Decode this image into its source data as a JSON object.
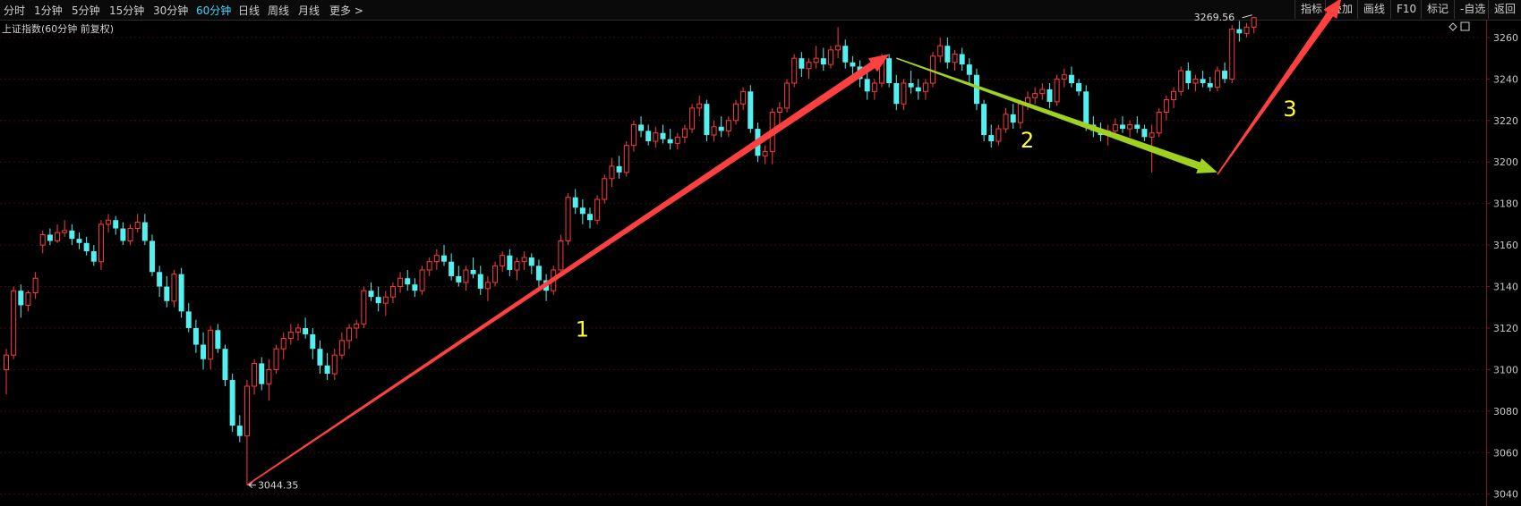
{
  "toolbar": {
    "periods": [
      "分时",
      "1分钟",
      "5分钟",
      "15分钟",
      "30分钟",
      "60分钟",
      "日线",
      "周线",
      "月线",
      "更多 >"
    ],
    "active_period": "60分钟",
    "right_buttons": [
      "指标",
      "叠加",
      "画线",
      "F10",
      "标记",
      "-自选",
      "返回"
    ],
    "right_icons": [
      "diamond-icon",
      "square-icon"
    ]
  },
  "chart_title": "上证指数(60分钟 前复权)",
  "colors": {
    "up": "#ff3a3a",
    "down": "#54f0f0",
    "grid": "#3a0e0e",
    "arrow_red": "#ff4040",
    "arrow_green": "#a0d020",
    "annotation": "#ffff33"
  },
  "chart_data": {
    "type": "candlestick",
    "y_ticks": [
      3040,
      3060,
      3080,
      3100,
      3120,
      3140,
      3160,
      3180,
      3200,
      3220,
      3240,
      3260
    ],
    "ylim": [
      3036,
      3266
    ],
    "grid": "horizontal dotted",
    "candles": [
      [
        3100,
        3110,
        3088,
        3107
      ],
      [
        3107,
        3140,
        3105,
        3138
      ],
      [
        3138,
        3141,
        3125,
        3131
      ],
      [
        3131,
        3138,
        3128,
        3137
      ],
      [
        3137,
        3147,
        3134,
        3144
      ],
      [
        3160,
        3167,
        3156,
        3165
      ],
      [
        3165,
        3168,
        3160,
        3162
      ],
      [
        3162,
        3170,
        3161,
        3166
      ],
      [
        3166,
        3172,
        3164,
        3167
      ],
      [
        3167,
        3170,
        3160,
        3163
      ],
      [
        3163,
        3166,
        3158,
        3161
      ],
      [
        3161,
        3164,
        3155,
        3157
      ],
      [
        3157,
        3160,
        3150,
        3152
      ],
      [
        3152,
        3172,
        3148,
        3170
      ],
      [
        3170,
        3175,
        3166,
        3172
      ],
      [
        3172,
        3174,
        3165,
        3168
      ],
      [
        3168,
        3171,
        3160,
        3162
      ],
      [
        3162,
        3170,
        3160,
        3168
      ],
      [
        3168,
        3175,
        3166,
        3171
      ],
      [
        3171,
        3175,
        3160,
        3162
      ],
      [
        3162,
        3165,
        3145,
        3147
      ],
      [
        3147,
        3150,
        3135,
        3140
      ],
      [
        3140,
        3145,
        3130,
        3133
      ],
      [
        3133,
        3148,
        3130,
        3146
      ],
      [
        3146,
        3149,
        3125,
        3128
      ],
      [
        3128,
        3132,
        3118,
        3120
      ],
      [
        3120,
        3124,
        3108,
        3112
      ],
      [
        3112,
        3118,
        3100,
        3105
      ],
      [
        3105,
        3121,
        3100,
        3119
      ],
      [
        3119,
        3122,
        3108,
        3110
      ],
      [
        3110,
        3112,
        3092,
        3095
      ],
      [
        3095,
        3098,
        3070,
        3073
      ],
      [
        3073,
        3078,
        3065,
        3068
      ],
      [
        3068,
        3095,
        3044.35,
        3092
      ],
      [
        3092,
        3105,
        3088,
        3103
      ],
      [
        3103,
        3106,
        3090,
        3093
      ],
      [
        3093,
        3105,
        3085,
        3100
      ],
      [
        3100,
        3112,
        3098,
        3110
      ],
      [
        3110,
        3118,
        3105,
        3115
      ],
      [
        3115,
        3122,
        3112,
        3118
      ],
      [
        3118,
        3122,
        3114,
        3120
      ],
      [
        3120,
        3125,
        3115,
        3117
      ],
      [
        3117,
        3120,
        3105,
        3110
      ],
      [
        3110,
        3114,
        3098,
        3102
      ],
      [
        3102,
        3108,
        3095,
        3098
      ],
      [
        3098,
        3110,
        3095,
        3107
      ],
      [
        3107,
        3118,
        3105,
        3114
      ],
      [
        3114,
        3122,
        3110,
        3120
      ],
      [
        3120,
        3124,
        3115,
        3122
      ],
      [
        3122,
        3140,
        3120,
        3138
      ],
      [
        3138,
        3142,
        3133,
        3135
      ],
      [
        3135,
        3140,
        3128,
        3132
      ],
      [
        3132,
        3138,
        3126,
        3135
      ],
      [
        3135,
        3142,
        3132,
        3140
      ],
      [
        3140,
        3147,
        3137,
        3144
      ],
      [
        3144,
        3148,
        3138,
        3141
      ],
      [
        3141,
        3144,
        3135,
        3138
      ],
      [
        3138,
        3150,
        3136,
        3148
      ],
      [
        3148,
        3154,
        3145,
        3152
      ],
      [
        3152,
        3158,
        3148,
        3155
      ],
      [
        3155,
        3160,
        3150,
        3152
      ],
      [
        3152,
        3156,
        3143,
        3145
      ],
      [
        3145,
        3150,
        3140,
        3142
      ],
      [
        3142,
        3150,
        3138,
        3148
      ],
      [
        3148,
        3154,
        3144,
        3146
      ],
      [
        3146,
        3150,
        3136,
        3139
      ],
      [
        3139,
        3145,
        3133,
        3142
      ],
      [
        3142,
        3152,
        3140,
        3150
      ],
      [
        3150,
        3157,
        3147,
        3155
      ],
      [
        3155,
        3158,
        3145,
        3148
      ],
      [
        3148,
        3154,
        3143,
        3152
      ],
      [
        3152,
        3157,
        3148,
        3154
      ],
      [
        3154,
        3156,
        3146,
        3150
      ],
      [
        3150,
        3153,
        3140,
        3143
      ],
      [
        3143,
        3146,
        3133,
        3138
      ],
      [
        3138,
        3150,
        3136,
        3148
      ],
      [
        3148,
        3165,
        3146,
        3162
      ],
      [
        3162,
        3185,
        3160,
        3183
      ],
      [
        3183,
        3187,
        3175,
        3178
      ],
      [
        3178,
        3182,
        3170,
        3175
      ],
      [
        3175,
        3178,
        3168,
        3172
      ],
      [
        3172,
        3184,
        3170,
        3182
      ],
      [
        3182,
        3194,
        3180,
        3192
      ],
      [
        3192,
        3202,
        3188,
        3198
      ],
      [
        3198,
        3203,
        3192,
        3195
      ],
      [
        3195,
        3210,
        3193,
        3208
      ],
      [
        3208,
        3220,
        3205,
        3218
      ],
      [
        3218,
        3222,
        3212,
        3215
      ],
      [
        3215,
        3218,
        3208,
        3210
      ],
      [
        3210,
        3217,
        3207,
        3214
      ],
      [
        3214,
        3218,
        3209,
        3211
      ],
      [
        3211,
        3216,
        3206,
        3209
      ],
      [
        3209,
        3214,
        3206,
        3212
      ],
      [
        3212,
        3218,
        3209,
        3216
      ],
      [
        3216,
        3228,
        3214,
        3226
      ],
      [
        3226,
        3232,
        3222,
        3228
      ],
      [
        3228,
        3230,
        3210,
        3213
      ],
      [
        3213,
        3220,
        3210,
        3217
      ],
      [
        3217,
        3222,
        3212,
        3215
      ],
      [
        3215,
        3222,
        3212,
        3220
      ],
      [
        3220,
        3230,
        3218,
        3228
      ],
      [
        3228,
        3236,
        3225,
        3234
      ],
      [
        3234,
        3237,
        3214,
        3216
      ],
      [
        3216,
        3219,
        3200,
        3203
      ],
      [
        3203,
        3208,
        3199,
        3205
      ],
      [
        3205,
        3226,
        3199,
        3224
      ],
      [
        3224,
        3229,
        3218,
        3226
      ],
      [
        3226,
        3240,
        3224,
        3238
      ],
      [
        3238,
        3252,
        3236,
        3250
      ],
      [
        3250,
        3253,
        3241,
        3245
      ],
      [
        3245,
        3250,
        3240,
        3248
      ],
      [
        3248,
        3256,
        3245,
        3250
      ],
      [
        3250,
        3255,
        3244,
        3247
      ],
      [
        3247,
        3256,
        3245,
        3254
      ],
      [
        3254,
        3265,
        3250,
        3256
      ],
      [
        3256,
        3259,
        3245,
        3248
      ],
      [
        3248,
        3251,
        3240,
        3246
      ],
      [
        3246,
        3249,
        3236,
        3240
      ],
      [
        3240,
        3244,
        3230,
        3234
      ],
      [
        3234,
        3240,
        3230,
        3238
      ],
      [
        3238,
        3252,
        3236,
        3250
      ],
      [
        3250,
        3252,
        3236,
        3238
      ],
      [
        3238,
        3242,
        3225,
        3228
      ],
      [
        3228,
        3240,
        3225,
        3238
      ],
      [
        3238,
        3244,
        3233,
        3236
      ],
      [
        3236,
        3240,
        3230,
        3234
      ],
      [
        3234,
        3240,
        3230,
        3238
      ],
      [
        3238,
        3253,
        3236,
        3251
      ],
      [
        3251,
        3260,
        3248,
        3256
      ],
      [
        3256,
        3260,
        3245,
        3248
      ],
      [
        3248,
        3254,
        3244,
        3252
      ],
      [
        3252,
        3255,
        3244,
        3247
      ],
      [
        3247,
        3250,
        3238,
        3242
      ],
      [
        3242,
        3245,
        3225,
        3228
      ],
      [
        3228,
        3230,
        3210,
        3213
      ],
      [
        3213,
        3218,
        3207,
        3210
      ],
      [
        3210,
        3218,
        3208,
        3216
      ],
      [
        3216,
        3226,
        3214,
        3223
      ],
      [
        3223,
        3228,
        3216,
        3219
      ],
      [
        3219,
        3230,
        3216,
        3228
      ],
      [
        3228,
        3234,
        3225,
        3231
      ],
      [
        3231,
        3236,
        3228,
        3233
      ],
      [
        3233,
        3238,
        3230,
        3235
      ],
      [
        3235,
        3238,
        3226,
        3229
      ],
      [
        3229,
        3242,
        3227,
        3240
      ],
      [
        3240,
        3245,
        3236,
        3242
      ],
      [
        3242,
        3246,
        3236,
        3238
      ],
      [
        3238,
        3240,
        3232,
        3234
      ],
      [
        3234,
        3237,
        3215,
        3218
      ],
      [
        3218,
        3222,
        3212,
        3215
      ],
      [
        3215,
        3219,
        3210,
        3213
      ],
      [
        3213,
        3218,
        3208,
        3215
      ],
      [
        3215,
        3221,
        3211,
        3218
      ],
      [
        3218,
        3222,
        3214,
        3216
      ],
      [
        3216,
        3220,
        3212,
        3218
      ],
      [
        3218,
        3222,
        3214,
        3216
      ],
      [
        3216,
        3218,
        3210,
        3212
      ],
      [
        3212,
        3218,
        3195,
        3214
      ],
      [
        3214,
        3226,
        3212,
        3224
      ],
      [
        3224,
        3232,
        3220,
        3230
      ],
      [
        3230,
        3236,
        3226,
        3234
      ],
      [
        3234,
        3246,
        3232,
        3244
      ],
      [
        3244,
        3248,
        3235,
        3238
      ],
      [
        3238,
        3242,
        3234,
        3240
      ],
      [
        3240,
        3244,
        3236,
        3238
      ],
      [
        3238,
        3241,
        3234,
        3236
      ],
      [
        3236,
        3246,
        3234,
        3244
      ],
      [
        3244,
        3248,
        3238,
        3240
      ],
      [
        3240,
        3266,
        3238,
        3264
      ],
      [
        3264,
        3268,
        3258,
        3262
      ],
      [
        3262,
        3267,
        3260,
        3265
      ],
      [
        3265,
        3270,
        3262,
        3269.56
      ]
    ],
    "annotations": [
      {
        "label": "1",
        "x_index": 78,
        "y": 3116
      },
      {
        "label": "2",
        "x_index": 139,
        "y": 3207
      },
      {
        "label": "3",
        "x_index": 175,
        "y": 3222
      }
    ],
    "arrows": [
      {
        "color": "red",
        "from": [
          33,
          3044.35
        ],
        "to": [
          121,
          3252
        ]
      },
      {
        "color": "green",
        "from": [
          122,
          3250
        ],
        "to": [
          166,
          3195
        ]
      },
      {
        "color": "red",
        "from": [
          166,
          3194
        ],
        "to": [
          183,
          3279
        ]
      }
    ],
    "low_label": "3044.35",
    "high_label": "3269.56"
  }
}
